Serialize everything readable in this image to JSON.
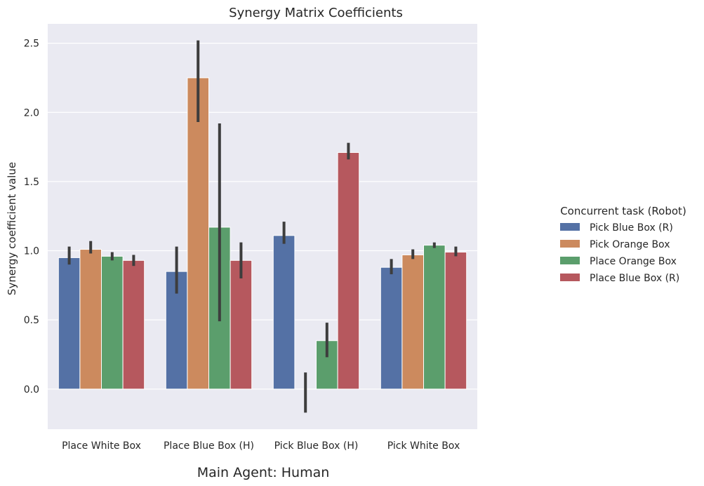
{
  "chart_data": {
    "type": "bar",
    "title": "Synergy Matrix Coefficients",
    "xlabel": "Main Agent: Human",
    "ylabel": "Synergy coefficient value",
    "ylim": [
      -0.29,
      2.64
    ],
    "yticks": [
      0.0,
      0.5,
      1.0,
      1.5,
      2.0,
      2.5
    ],
    "ytick_labels": [
      "0.0",
      "0.5",
      "1.0",
      "1.5",
      "2.0",
      "2.5"
    ],
    "grid": true,
    "legend_title": "Concurrent task (Robot)",
    "legend_position": "right",
    "categories": [
      "Place White Box",
      "Place Blue Box (H)",
      "Pick Blue Box (H)",
      "Pick White Box"
    ],
    "series": [
      {
        "name": "Pick Blue Box (R)",
        "color": "#5471a5",
        "values": [
          0.95,
          0.85,
          1.11,
          0.88
        ],
        "err_low": [
          0.9,
          0.69,
          1.05,
          0.83
        ],
        "err_high": [
          1.03,
          1.03,
          1.21,
          0.94
        ]
      },
      {
        "name": "Pick Orange Box",
        "color": "#cc8a5e",
        "values": [
          1.01,
          2.25,
          0.0,
          0.97
        ],
        "err_low": [
          0.98,
          1.93,
          -0.17,
          0.94
        ],
        "err_high": [
          1.07,
          2.52,
          0.12,
          1.01
        ]
      },
      {
        "name": "Place Orange Box",
        "color": "#5b9e6c",
        "values": [
          0.96,
          1.17,
          0.35,
          1.04
        ],
        "err_low": [
          0.93,
          0.49,
          0.23,
          1.02
        ],
        "err_high": [
          0.99,
          1.92,
          0.48,
          1.06
        ]
      },
      {
        "name": "Place Blue Box (R)",
        "color": "#b6585e",
        "values": [
          0.93,
          0.93,
          1.71,
          0.99
        ],
        "err_low": [
          0.89,
          0.8,
          1.66,
          0.96
        ],
        "err_high": [
          0.97,
          1.06,
          1.78,
          1.03
        ]
      }
    ]
  }
}
